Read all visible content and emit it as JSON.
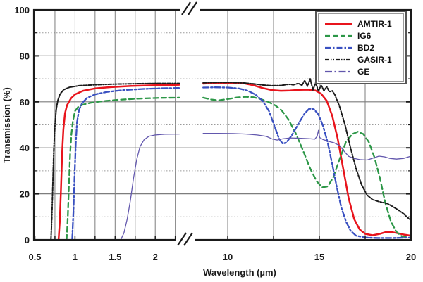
{
  "chart_data": {
    "type": "line",
    "title": "",
    "xlabel": "Wavelength (µm)",
    "ylabel": "Transmission (%)",
    "grid": true,
    "legend_position": "top-right",
    "x_axis": {
      "broken": true,
      "break_symbol": "//",
      "left_range": [
        0.5,
        2.35
      ],
      "right_range": [
        8.65,
        20
      ],
      "left_gridlines": [
        0.75,
        1,
        1.25,
        1.5,
        1.75,
        2,
        2.25
      ],
      "left_labeled_ticks": [
        0.5,
        1,
        1.5,
        2
      ],
      "right_gridlines": [
        10,
        12.5,
        15,
        17.5
      ],
      "right_labeled_ticks": [
        10,
        15,
        20
      ]
    },
    "y_axis": {
      "range": [
        0,
        100
      ],
      "major_ticks": [
        0,
        20,
        40,
        60,
        80,
        100
      ],
      "minor_ticks": [
        10,
        30,
        50,
        70,
        90
      ]
    },
    "series": [
      {
        "name": "AMTIR-1",
        "color": "#e8141c",
        "width": 2.5,
        "plot_dash": "",
        "legend_dash": "",
        "segments": [
          [
            [
              0.795,
              0
            ],
            [
              0.81,
              8
            ],
            [
              0.825,
              22
            ],
            [
              0.84,
              38
            ],
            [
              0.855,
              48
            ],
            [
              0.875,
              55
            ],
            [
              0.9,
              58.5
            ],
            [
              0.95,
              61.5
            ],
            [
              1.0,
              63.2
            ],
            [
              1.1,
              64.8
            ],
            [
              1.25,
              65.8
            ],
            [
              1.45,
              66.4
            ],
            [
              1.7,
              66.9
            ],
            [
              2.0,
              67.2
            ],
            [
              2.3,
              67.4
            ]
          ],
          [
            [
              8.66,
              67.9
            ],
            [
              9.2,
              68.1
            ],
            [
              9.8,
              68.2
            ],
            [
              10.4,
              68.2
            ],
            [
              10.9,
              68.0
            ],
            [
              11.4,
              67.2
            ],
            [
              11.9,
              66.0
            ],
            [
              12.4,
              65.1
            ],
            [
              12.9,
              64.8
            ],
            [
              13.4,
              64.9
            ],
            [
              13.9,
              65.2
            ],
            [
              14.4,
              65.3
            ],
            [
              14.8,
              64.9
            ],
            [
              15.1,
              63.5
            ],
            [
              15.4,
              60.5
            ],
            [
              15.7,
              54
            ],
            [
              16.0,
              44
            ],
            [
              16.3,
              31
            ],
            [
              16.6,
              18
            ],
            [
              16.9,
              9
            ],
            [
              17.2,
              4.5
            ],
            [
              17.5,
              2.6
            ],
            [
              17.9,
              2.0
            ],
            [
              18.3,
              2.6
            ],
            [
              18.6,
              3.3
            ],
            [
              18.9,
              3.4
            ],
            [
              19.2,
              3.0
            ],
            [
              19.6,
              2.3
            ],
            [
              20,
              1.8
            ]
          ]
        ]
      },
      {
        "name": "IG6",
        "color": "#2c9747",
        "width": 2.3,
        "plot_dash": "7 4.5",
        "legend_dash": "7 4",
        "segments": [
          [
            [
              0.895,
              0
            ],
            [
              0.91,
              10
            ],
            [
              0.925,
              25
            ],
            [
              0.94,
              38
            ],
            [
              0.955,
              46
            ],
            [
              0.975,
              52
            ],
            [
              1.0,
              56
            ],
            [
              1.04,
              57.8
            ],
            [
              1.1,
              58.8
            ],
            [
              1.2,
              59.6
            ],
            [
              1.35,
              60.3
            ],
            [
              1.55,
              60.9
            ],
            [
              1.8,
              61.4
            ],
            [
              2.05,
              61.7
            ],
            [
              2.3,
              61.8
            ]
          ],
          [
            [
              8.66,
              61.8
            ],
            [
              9.1,
              61.0
            ],
            [
              9.5,
              60.6
            ],
            [
              10.0,
              61.2
            ],
            [
              10.5,
              61.9
            ],
            [
              11.0,
              62.2
            ],
            [
              11.4,
              62.0
            ],
            [
              11.8,
              61.2
            ],
            [
              12.2,
              60.0
            ],
            [
              12.6,
              58.4
            ],
            [
              12.95,
              56.2
            ],
            [
              13.3,
              52.5
            ],
            [
              13.7,
              46.5
            ],
            [
              14.1,
              39
            ],
            [
              14.5,
              31
            ],
            [
              14.85,
              25.5
            ],
            [
              15.15,
              22.8
            ],
            [
              15.45,
              23.2
            ],
            [
              15.75,
              27
            ],
            [
              16.1,
              35
            ],
            [
              16.45,
              42.5
            ],
            [
              16.8,
              46
            ],
            [
              17.1,
              47
            ],
            [
              17.4,
              46
            ],
            [
              17.7,
              42.5
            ],
            [
              18.0,
              36
            ],
            [
              18.3,
              27
            ],
            [
              18.6,
              16
            ],
            [
              18.9,
              8
            ],
            [
              19.2,
              3.5
            ],
            [
              19.5,
              1.5
            ],
            [
              20,
              0.8
            ]
          ]
        ]
      },
      {
        "name": "BD2",
        "color": "#3950c1",
        "width": 2.3,
        "plot_dash": "8 3 2.5 3",
        "legend_dash": "8 3 2.5 3",
        "segments": [
          [
            [
              0.965,
              0
            ],
            [
              0.98,
              12
            ],
            [
              0.995,
              28
            ],
            [
              1.01,
              42
            ],
            [
              1.025,
              51
            ],
            [
              1.05,
              56.5
            ],
            [
              1.09,
              59.5
            ],
            [
              1.15,
              61.7
            ],
            [
              1.25,
              63.2
            ],
            [
              1.4,
              64.3
            ],
            [
              1.6,
              65.1
            ],
            [
              1.85,
              65.6
            ],
            [
              2.1,
              65.9
            ],
            [
              2.3,
              66.0
            ]
          ],
          [
            [
              8.66,
              66.2
            ],
            [
              9.3,
              66.3
            ],
            [
              10.0,
              66.2
            ],
            [
              10.6,
              65.8
            ],
            [
              11.1,
              64.8
            ],
            [
              11.5,
              63.2
            ],
            [
              11.9,
              60.5
            ],
            [
              12.25,
              56
            ],
            [
              12.55,
              49.5
            ],
            [
              12.8,
              44
            ],
            [
              13.0,
              41.8
            ],
            [
              13.2,
              42.3
            ],
            [
              13.5,
              45.5
            ],
            [
              13.9,
              51
            ],
            [
              14.2,
              55
            ],
            [
              14.45,
              57
            ],
            [
              14.7,
              56.8
            ],
            [
              14.95,
              54.5
            ],
            [
              15.2,
              49.5
            ],
            [
              15.45,
              42.5
            ],
            [
              15.7,
              33
            ],
            [
              15.95,
              23
            ],
            [
              16.2,
              14
            ],
            [
              16.45,
              8
            ],
            [
              16.7,
              4
            ],
            [
              17.0,
              1.8
            ],
            [
              17.5,
              1.0
            ],
            [
              18.2,
              0.8
            ],
            [
              19.0,
              0.8
            ],
            [
              20,
              1.0
            ]
          ]
        ]
      },
      {
        "name": "GASIR-1",
        "color": "#1a1a1a",
        "width": 2.0,
        "plot_dash": "5 2 1.5 2 1.5 2",
        "legend_dash": "6 2 1.5 2 1.5 2",
        "segments": [
          [
            [
              0.7,
              0
            ],
            [
              0.712,
              10
            ],
            [
              0.724,
              25
            ],
            [
              0.736,
              40
            ],
            [
              0.75,
              50
            ],
            [
              0.765,
              56.5
            ],
            [
              0.785,
              60.5
            ],
            [
              0.815,
              63.5
            ],
            [
              0.86,
              65.3
            ],
            [
              0.93,
              66.3
            ],
            [
              1.05,
              67.0
            ],
            [
              1.25,
              67.4
            ],
            [
              1.5,
              67.7
            ],
            [
              1.8,
              67.9
            ],
            [
              2.05,
              68.0
            ],
            [
              2.3,
              68.0
            ]
          ],
          [
            [
              8.66,
              68.3
            ],
            [
              9.4,
              68.4
            ],
            [
              10.2,
              68.4
            ],
            [
              10.9,
              68.2
            ],
            [
              11.4,
              67.8
            ],
            [
              11.9,
              67.3
            ],
            [
              12.4,
              67.0
            ],
            [
              12.9,
              67.1
            ],
            [
              13.3,
              67.6
            ],
            [
              13.6,
              67.4
            ],
            [
              13.85,
              68.0
            ],
            [
              14.05,
              67.2
            ],
            [
              14.2,
              69.3
            ],
            [
              14.35,
              66.8
            ],
            [
              14.5,
              70.0
            ],
            [
              14.65,
              65.2
            ],
            [
              14.8,
              68.3
            ],
            [
              14.95,
              64.6
            ],
            [
              15.1,
              67.3
            ],
            [
              15.25,
              64.8
            ],
            [
              15.4,
              66.6
            ],
            [
              15.55,
              64.3
            ],
            [
              15.7,
              64.9
            ],
            [
              15.85,
              63.0
            ],
            [
              16.1,
              58
            ],
            [
              16.4,
              50
            ],
            [
              16.7,
              40
            ],
            [
              17.0,
              31
            ],
            [
              17.3,
              24
            ],
            [
              17.6,
              19.5
            ],
            [
              17.9,
              17.5
            ],
            [
              18.3,
              16.5
            ],
            [
              18.7,
              15.8
            ],
            [
              19.0,
              14.5
            ],
            [
              19.3,
              13
            ],
            [
              19.6,
              11.3
            ],
            [
              19.8,
              9.8
            ],
            [
              20,
              8.5
            ]
          ]
        ]
      },
      {
        "name": "GE",
        "color": "#6257ad",
        "width": 1.3,
        "plot_dash": "",
        "legend_dash": "10 3.5 2.5 3.5",
        "segments": [
          [
            [
              1.57,
              0
            ],
            [
              1.61,
              3
            ],
            [
              1.65,
              9
            ],
            [
              1.69,
              17
            ],
            [
              1.73,
              27
            ],
            [
              1.77,
              35
            ],
            [
              1.81,
              40.5
            ],
            [
              1.86,
              43.5
            ],
            [
              1.92,
              45.0
            ],
            [
              2.0,
              45.6
            ],
            [
              2.12,
              45.9
            ],
            [
              2.3,
              46.0
            ]
          ],
          [
            [
              8.66,
              46.3
            ],
            [
              9.5,
              46.3
            ],
            [
              10.3,
              46.2
            ],
            [
              11.0,
              46.0
            ],
            [
              11.6,
              45.6
            ],
            [
              12.1,
              45.0
            ],
            [
              12.45,
              43.8
            ],
            [
              12.7,
              43.4
            ],
            [
              13.0,
              43.9
            ],
            [
              13.4,
              44.3
            ],
            [
              13.9,
              44.2
            ],
            [
              14.4,
              44.0
            ],
            [
              14.75,
              43.8
            ],
            [
              14.88,
              45.0
            ],
            [
              14.95,
              47.6
            ],
            [
              15.02,
              44.5
            ],
            [
              15.2,
              43.6
            ],
            [
              15.5,
              42.8
            ],
            [
              15.8,
              42.2
            ],
            [
              16.1,
              41.0
            ],
            [
              16.35,
              38.5
            ],
            [
              16.6,
              36.3
            ],
            [
              16.9,
              35.4
            ],
            [
              17.2,
              34.9
            ],
            [
              17.6,
              34.7
            ],
            [
              17.95,
              35.6
            ],
            [
              18.25,
              36.4
            ],
            [
              18.55,
              36.1
            ],
            [
              18.85,
              35.4
            ],
            [
              19.2,
              35.1
            ],
            [
              19.6,
              35.4
            ],
            [
              20,
              36.4
            ]
          ]
        ]
      }
    ],
    "colors": {
      "plot_border": "#1a1a1a",
      "grid_major": "#7d7d7d",
      "grid_minor_dotted": "#9a9a9a",
      "text": "#1a1a1a",
      "background": "#ffffff"
    }
  }
}
